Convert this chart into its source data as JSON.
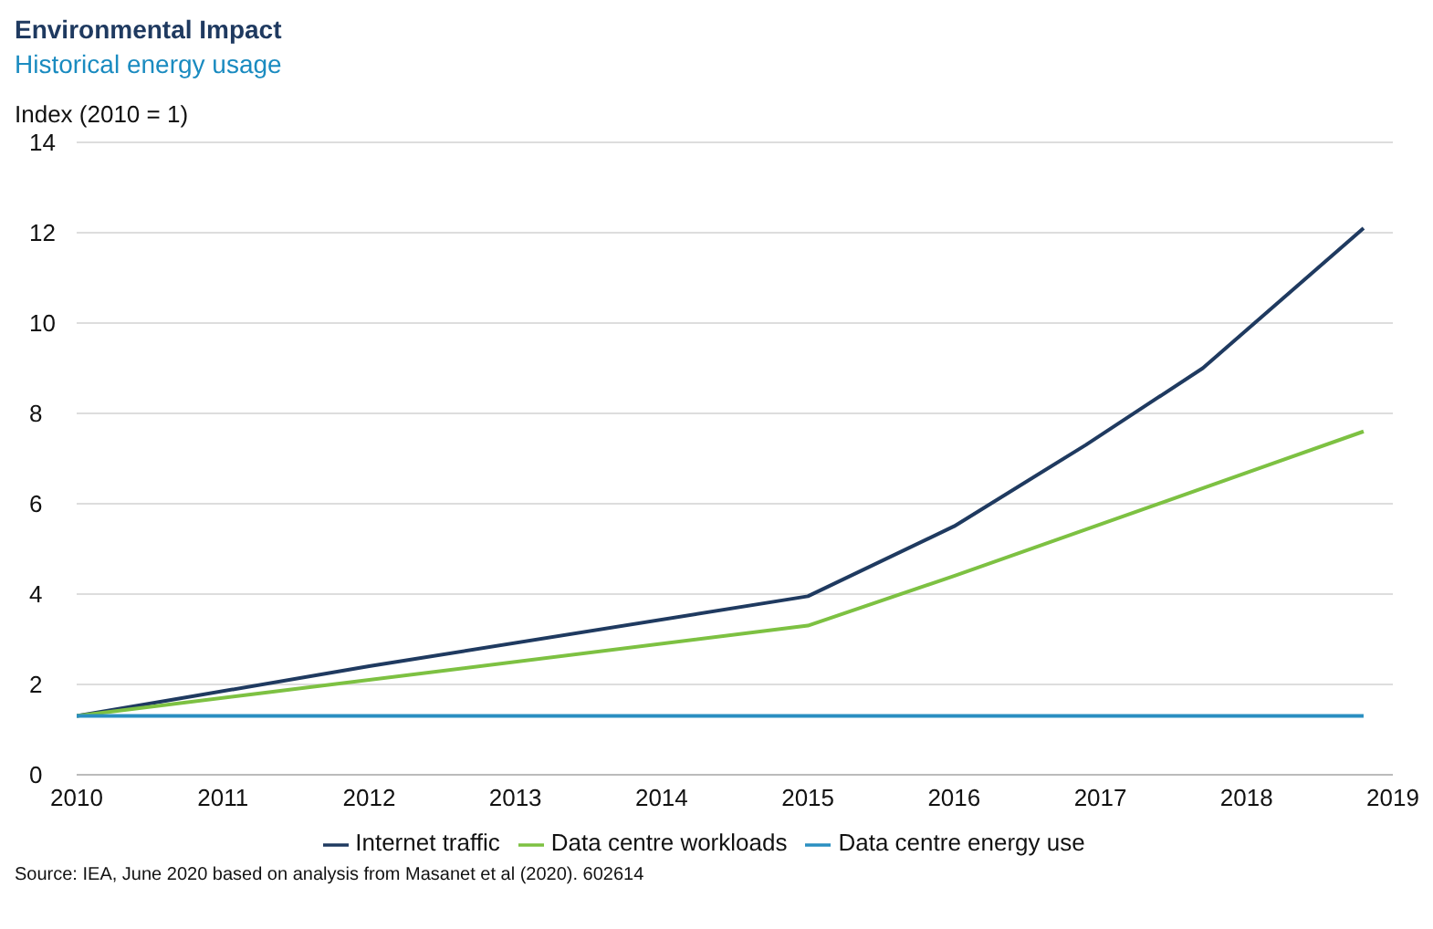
{
  "chart_data": {
    "type": "line",
    "title": "Environmental Impact",
    "subtitle": "Historical energy usage",
    "ylabel": "Index (2010 = 1)",
    "series": [
      {
        "name": "Internet traffic",
        "color": "#1f3a60",
        "x": [
          2010,
          2012,
          2015,
          2016,
          2016.9,
          2017.7,
          2018.8
        ],
        "values": [
          1.3,
          2.4,
          3.95,
          5.5,
          7.3,
          9.0,
          12.1
        ]
      },
      {
        "name": "Data centre workloads",
        "color": "#7dc142",
        "x": [
          2010,
          2015,
          2016,
          2018.8
        ],
        "values": [
          1.3,
          3.3,
          4.4,
          7.6
        ]
      },
      {
        "name": "Data centre energy use",
        "color": "#2a8fc1",
        "x": [
          2010,
          2018.8
        ],
        "values": [
          1.3,
          1.3
        ]
      }
    ],
    "xlim": [
      2010,
      2019
    ],
    "xticks": [
      2010,
      2011,
      2012,
      2013,
      2014,
      2015,
      2016,
      2017,
      2018,
      2019
    ],
    "ylim": [
      0,
      14
    ],
    "yticks": [
      0,
      2,
      4,
      6,
      8,
      10,
      12,
      14
    ],
    "grid": "y",
    "legend": "bottom",
    "marker": "none",
    "line_style": "solid",
    "annotations": [
      "Source: IEA, June 2020 based on analysis from Masanet et al (2020). 602614"
    ]
  }
}
